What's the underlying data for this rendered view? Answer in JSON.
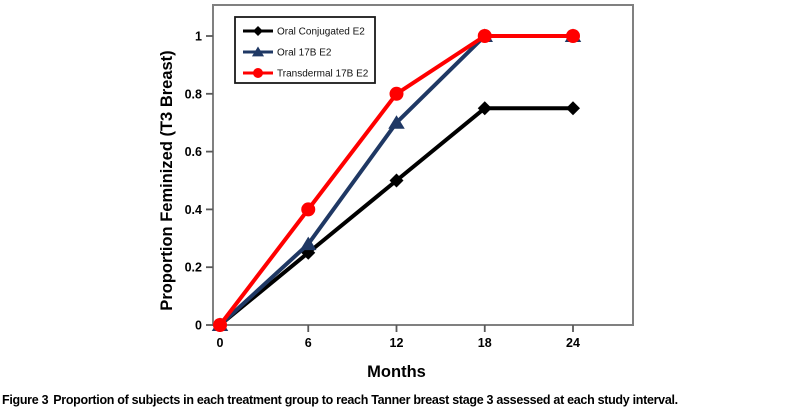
{
  "figure": {
    "caption_label": "Figure 3",
    "caption_text": "Proportion of subjects in each treatment group to reach Tanner breast stage 3 assessed at each study interval."
  },
  "chart_data": {
    "type": "line",
    "title": "",
    "xlabel": "Months",
    "ylabel": "Proportion Feminized (T3 Breast)",
    "x": [
      0,
      6,
      12,
      18,
      24
    ],
    "xticks": [
      "0",
      "6",
      "12",
      "18",
      "24"
    ],
    "yticks": [
      "0",
      "0.2",
      "0.4",
      "0.6",
      "0.8",
      "1"
    ],
    "xlim": [
      0,
      24
    ],
    "ylim": [
      0,
      1
    ],
    "grid": false,
    "legend_position": "upper-left-inside",
    "frame_color": "#808080",
    "series": [
      {
        "name": "Oral Conjugated E2",
        "color": "#000000",
        "marker": "diamond",
        "values": [
          0,
          0.25,
          0.5,
          0.75,
          0.75
        ]
      },
      {
        "name": "Oral 17B E2",
        "color": "#1F3864",
        "marker": "triangle",
        "values": [
          0,
          0.28,
          0.7,
          1.0,
          1.0
        ]
      },
      {
        "name": "Transdermal 17B E2",
        "color": "#FF0000",
        "marker": "circle",
        "values": [
          0,
          0.4,
          0.8,
          1.0,
          1.0
        ]
      }
    ]
  }
}
